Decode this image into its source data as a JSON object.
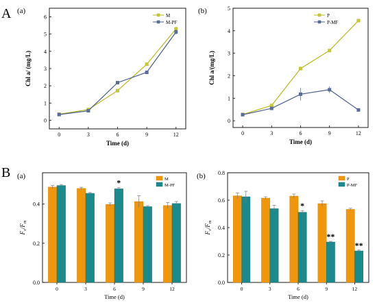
{
  "figure": {
    "section_labels": [
      "A",
      "B"
    ]
  },
  "chart_data": [
    {
      "type": "line",
      "panel_label": "(a)",
      "xlabel": "Time (d)",
      "ylabel": "Chl a/ (mg/L)",
      "x": [
        0,
        3,
        6,
        9,
        12
      ],
      "xticks": [
        "0",
        "3",
        "6",
        "9",
        "12"
      ],
      "ylim": [
        -0.5,
        6.5
      ],
      "yticks": [
        "0",
        "1",
        "2",
        "3",
        "4",
        "5",
        "6"
      ],
      "legend_position": "top-right",
      "series": [
        {
          "name": "M",
          "color": "#b8b820",
          "marker": "square",
          "values": [
            0.35,
            0.62,
            1.72,
            3.25,
            5.3
          ],
          "errors": [
            0.03,
            0.05,
            0.08,
            0.1,
            0.12
          ]
        },
        {
          "name": "M-PF",
          "color": "#5a6e9a",
          "marker": "square",
          "values": [
            0.33,
            0.55,
            2.18,
            2.78,
            5.12
          ],
          "errors": [
            0.03,
            0.05,
            0.1,
            0.1,
            0.15
          ]
        }
      ]
    },
    {
      "type": "line",
      "panel_label": "(b)",
      "xlabel": "Time (d)",
      "ylabel": "Chl a/(mg/L)",
      "x": [
        0,
        3,
        6,
        9,
        12
      ],
      "xticks": [
        "0",
        "3",
        "6",
        "9",
        "12"
      ],
      "ylim": [
        -0.3,
        5.0
      ],
      "yticks": [
        "0",
        "1",
        "2",
        "3",
        "4",
        "5"
      ],
      "legend_position": "top-left",
      "series": [
        {
          "name": "P",
          "color": "#b8b820",
          "marker": "square",
          "values": [
            0.28,
            0.68,
            2.32,
            3.12,
            4.45
          ],
          "errors": [
            0.03,
            0.05,
            0.05,
            0.05,
            0.06
          ]
        },
        {
          "name": "P-MF",
          "color": "#5a6e9a",
          "marker": "square",
          "values": [
            0.27,
            0.55,
            1.18,
            1.38,
            0.48
          ],
          "errors": [
            0.03,
            0.05,
            0.28,
            0.15,
            0.05
          ]
        }
      ]
    },
    {
      "type": "bar",
      "panel_label": "(a)",
      "xlabel": "Time (d)",
      "ylabel": "Fv/Fm",
      "categories": [
        "0",
        "3",
        "6",
        "9",
        "12"
      ],
      "ylim": [
        0.0,
        0.56
      ],
      "yticks": [
        "0.0",
        "0.2",
        "0.4"
      ],
      "legend_position": "top-right",
      "series": [
        {
          "name": "M",
          "color": "#f0960a",
          "values": [
            0.487,
            0.48,
            0.398,
            0.413,
            0.393
          ],
          "errors": [
            0.008,
            0.006,
            0.008,
            0.03,
            0.015
          ]
        },
        {
          "name": "M-PF",
          "color": "#1b8a8c",
          "values": [
            0.495,
            0.455,
            0.478,
            0.387,
            0.403
          ],
          "errors": [
            0.005,
            0.004,
            0.006,
            0.005,
            0.01
          ]
        }
      ],
      "annotations": [
        {
          "category": "6",
          "series": "M-PF",
          "text": "*"
        }
      ]
    },
    {
      "type": "bar",
      "panel_label": "(b)",
      "xlabel": "Time (d)",
      "ylabel": "Fv/Fm",
      "categories": [
        "0",
        "3",
        "6",
        "9",
        "12"
      ],
      "ylim": [
        0.0,
        0.8
      ],
      "yticks": [
        "0.0",
        "0.2",
        "0.4",
        "0.6",
        "0.8"
      ],
      "legend_position": "top-right",
      "series": [
        {
          "name": "P",
          "color": "#f0960a",
          "values": [
            0.632,
            0.615,
            0.63,
            0.575,
            0.533
          ],
          "errors": [
            0.02,
            0.01,
            0.015,
            0.02,
            0.008
          ]
        },
        {
          "name": "P-MF",
          "color": "#1b8a8c",
          "values": [
            0.625,
            0.538,
            0.512,
            0.295,
            0.23
          ],
          "errors": [
            0.04,
            0.025,
            0.012,
            0.005,
            0.006
          ]
        }
      ],
      "annotations": [
        {
          "category": "6",
          "series": "P-MF",
          "text": "*"
        },
        {
          "category": "9",
          "series": "P-MF",
          "text": "**"
        },
        {
          "category": "12",
          "series": "P-MF",
          "text": "**"
        }
      ]
    }
  ]
}
